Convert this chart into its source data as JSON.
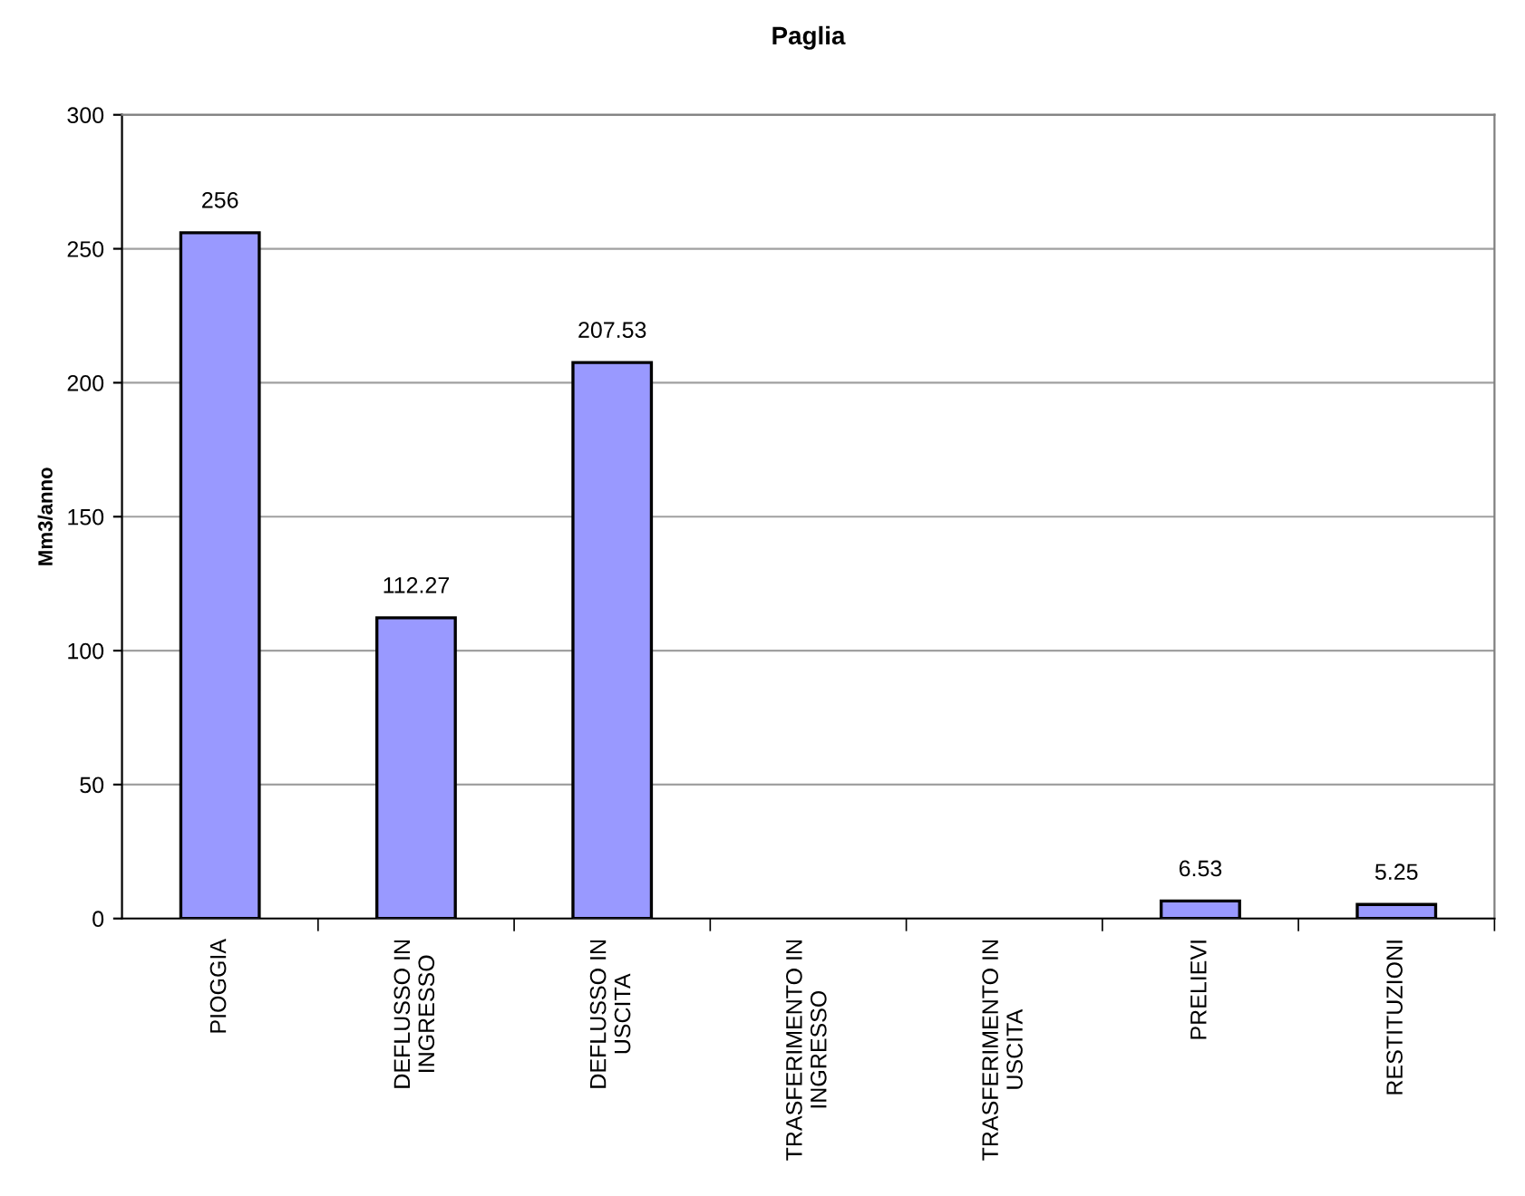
{
  "chart_data": {
    "type": "bar",
    "title": "Paglia",
    "ylabel": "Mm3/anno",
    "categories": [
      "PIOGGIA",
      "DEFLUSSO IN\nINGRESSO",
      "DEFLUSSO IN\nUSCITA",
      "TRASFERIMENTO IN\nINGRESSO",
      "TRASFERIMENTO IN\nUSCITA",
      "PRELIEVI",
      "RESTITUZIONI"
    ],
    "values": [
      256,
      112.27,
      207.53,
      null,
      null,
      6.53,
      5.25
    ],
    "value_labels": [
      "256",
      "112.27",
      "207.53",
      null,
      null,
      "6.53",
      "5.25"
    ],
    "color": "#9999ff",
    "ylim": [
      0,
      300
    ],
    "yticks": [
      0,
      50,
      100,
      150,
      200,
      250,
      300
    ],
    "grid": "y",
    "legend": false
  }
}
